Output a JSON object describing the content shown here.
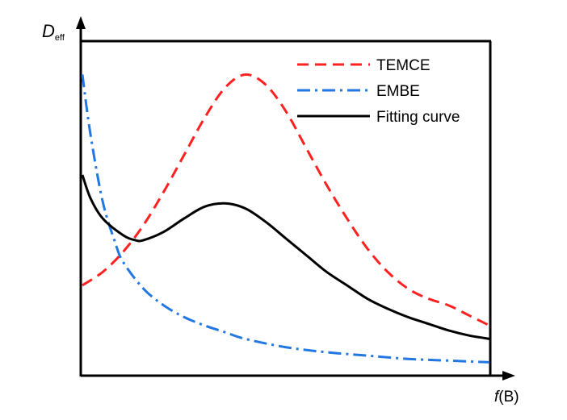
{
  "chart_data": {
    "type": "line",
    "title": "",
    "ylabel": {
      "main": "D",
      "subscript": "eff"
    },
    "xlabel": {
      "italic": "f",
      "rest": "(B)"
    },
    "xlim": [
      0,
      1
    ],
    "ylim": [
      0,
      1
    ],
    "ticks": "none",
    "grid": false,
    "legend_position": "top-right",
    "series": [
      {
        "name": "TEMCE",
        "color": "#ff2020",
        "style": "dashed",
        "x": [
          0,
          0.05,
          0.1,
          0.15,
          0.2,
          0.25,
          0.3,
          0.35,
          0.4,
          0.45,
          0.5,
          0.55,
          0.6,
          0.65,
          0.7,
          0.75,
          0.8,
          0.85,
          0.9,
          0.95,
          1.0
        ],
        "y": [
          0.27,
          0.31,
          0.37,
          0.45,
          0.55,
          0.66,
          0.77,
          0.86,
          0.9,
          0.87,
          0.79,
          0.68,
          0.57,
          0.47,
          0.38,
          0.31,
          0.26,
          0.23,
          0.21,
          0.18,
          0.15
        ]
      },
      {
        "name": "EMBE",
        "color": "#2277e0",
        "style": "dash-dot",
        "x": [
          0,
          0.02,
          0.05,
          0.08,
          0.1,
          0.15,
          0.2,
          0.25,
          0.3,
          0.35,
          0.4,
          0.5,
          0.6,
          0.7,
          0.8,
          0.9,
          1.0
        ],
        "y": [
          0.9,
          0.72,
          0.52,
          0.4,
          0.34,
          0.26,
          0.21,
          0.175,
          0.15,
          0.13,
          0.11,
          0.085,
          0.07,
          0.06,
          0.05,
          0.045,
          0.04
        ]
      },
      {
        "name": "Fitting curve",
        "color": "#000000",
        "style": "solid",
        "x": [
          0,
          0.02,
          0.05,
          0.1,
          0.13,
          0.15,
          0.2,
          0.25,
          0.3,
          0.35,
          0.4,
          0.45,
          0.5,
          0.55,
          0.6,
          0.65,
          0.7,
          0.75,
          0.8,
          0.85,
          0.9,
          0.95,
          1.0
        ],
        "y": [
          0.6,
          0.53,
          0.47,
          0.42,
          0.405,
          0.405,
          0.43,
          0.47,
          0.505,
          0.515,
          0.5,
          0.46,
          0.41,
          0.36,
          0.31,
          0.27,
          0.23,
          0.2,
          0.175,
          0.155,
          0.135,
          0.12,
          0.11
        ]
      }
    ]
  }
}
